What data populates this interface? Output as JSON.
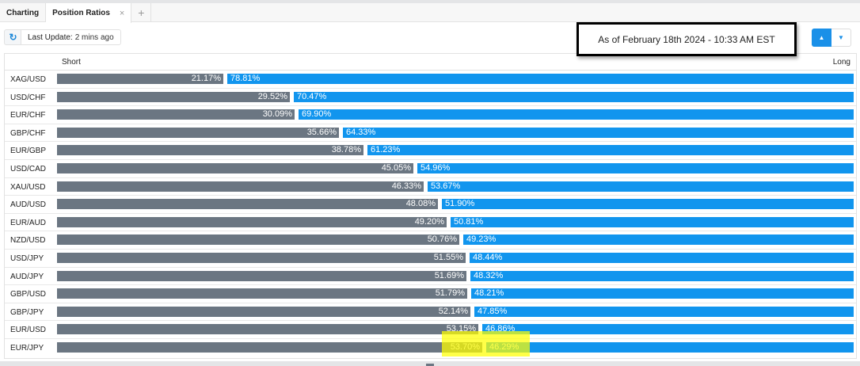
{
  "tabs": [
    {
      "label": "Charting"
    },
    {
      "label": "Position Ratios",
      "close": "×"
    },
    {
      "label": "+"
    }
  ],
  "toolbar": {
    "refresh_icon": "↻",
    "last_update_label": "Last Update:",
    "last_update_value": "2 mins ago"
  },
  "annotation": "As of February 18th 2024 - 10:33 AM EST",
  "sort": {
    "up": "▲",
    "down": "▼"
  },
  "header": {
    "short": "Short",
    "long": "Long"
  },
  "colors": {
    "short": "#6b7682",
    "long": "#1195ee",
    "highlight": "#ffff00"
  },
  "rows": [
    {
      "symbol": "XAG/USD",
      "short": "21.17%",
      "long": "78.81%"
    },
    {
      "symbol": "USD/CHF",
      "short": "29.52%",
      "long": "70.47%"
    },
    {
      "symbol": "EUR/CHF",
      "short": "30.09%",
      "long": "69.90%"
    },
    {
      "symbol": "GBP/CHF",
      "short": "35.66%",
      "long": "64.33%"
    },
    {
      "symbol": "EUR/GBP",
      "short": "38.78%",
      "long": "61.23%"
    },
    {
      "symbol": "USD/CAD",
      "short": "45.05%",
      "long": "54.96%"
    },
    {
      "symbol": "XAU/USD",
      "short": "46.33%",
      "long": "53.67%"
    },
    {
      "symbol": "AUD/USD",
      "short": "48.08%",
      "long": "51.90%"
    },
    {
      "symbol": "EUR/AUD",
      "short": "49.20%",
      "long": "50.81%"
    },
    {
      "symbol": "NZD/USD",
      "short": "50.76%",
      "long": "49.23%"
    },
    {
      "symbol": "USD/JPY",
      "short": "51.55%",
      "long": "48.44%"
    },
    {
      "symbol": "AUD/JPY",
      "short": "51.69%",
      "long": "48.32%"
    },
    {
      "symbol": "GBP/USD",
      "short": "51.79%",
      "long": "48.21%"
    },
    {
      "symbol": "GBP/JPY",
      "short": "52.14%",
      "long": "47.85%"
    },
    {
      "symbol": "EUR/USD",
      "short": "53.15%",
      "long": "46.86%"
    },
    {
      "symbol": "EUR/JPY",
      "short": "53.70%",
      "long": "46.29%",
      "highlighted": true
    }
  ]
}
